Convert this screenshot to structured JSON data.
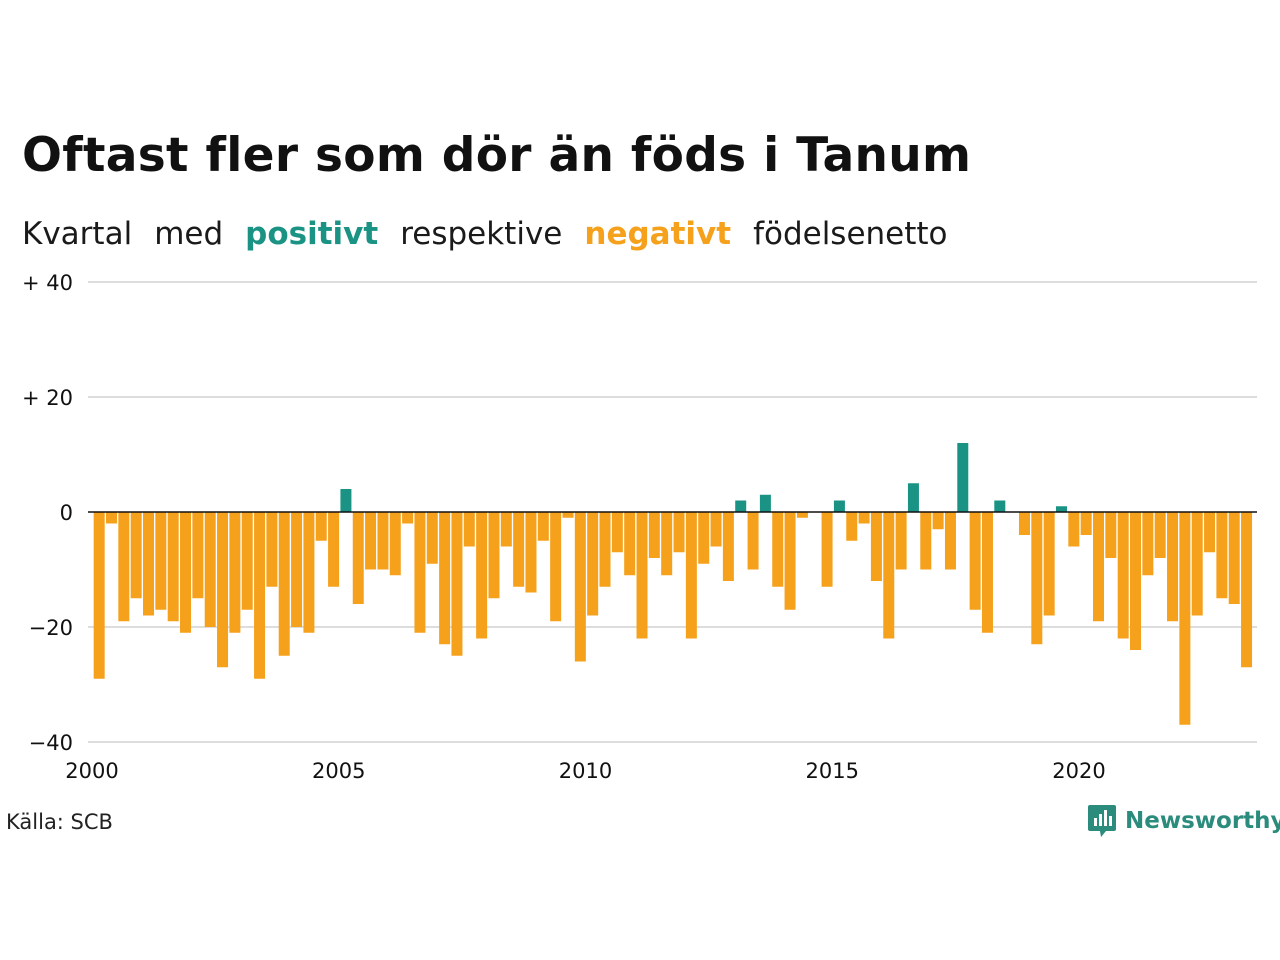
{
  "title": "Oftast fler som dör än föds i Tanum",
  "subtitle": {
    "w1": "Kvartal",
    "w2": "med",
    "positive": "positivt",
    "w3": "respektive",
    "negative": "negativt",
    "w4": "födelsenetto"
  },
  "source": "Källa: SCB",
  "brand": "Newsworthy",
  "colors": {
    "positive": "#1a9385",
    "negative": "#f5a11c",
    "grid": "#dddddd",
    "baseline": "#111111",
    "brand": "#2b8c7e"
  },
  "chart_data": {
    "type": "bar",
    "xlim": [
      2000,
      2023.75
    ],
    "ylim": [
      -40,
      40
    ],
    "yticks": [
      {
        "value": 40,
        "label": "+ 40"
      },
      {
        "value": 20,
        "label": "+ 20"
      },
      {
        "value": 0,
        "label": "0"
      },
      {
        "value": -20,
        "label": "−20"
      },
      {
        "value": -40,
        "label": "−40"
      }
    ],
    "xticks": [
      {
        "value": 2000,
        "label": "2000"
      },
      {
        "value": 2005,
        "label": "2005"
      },
      {
        "value": 2010,
        "label": "2010"
      },
      {
        "value": 2015,
        "label": "2015"
      },
      {
        "value": 2020,
        "label": "2020"
      }
    ],
    "x": [
      "2000 Q1",
      "2000 Q2",
      "2000 Q3",
      "2000 Q4",
      "2001 Q1",
      "2001 Q2",
      "2001 Q3",
      "2001 Q4",
      "2002 Q1",
      "2002 Q2",
      "2002 Q3",
      "2002 Q4",
      "2003 Q1",
      "2003 Q2",
      "2003 Q3",
      "2003 Q4",
      "2004 Q1",
      "2004 Q2",
      "2004 Q3",
      "2004 Q4",
      "2005 Q1",
      "2005 Q2",
      "2005 Q3",
      "2005 Q4",
      "2006 Q1",
      "2006 Q2",
      "2006 Q3",
      "2006 Q4",
      "2007 Q1",
      "2007 Q2",
      "2007 Q3",
      "2007 Q4",
      "2008 Q1",
      "2008 Q2",
      "2008 Q3",
      "2008 Q4",
      "2009 Q1",
      "2009 Q2",
      "2009 Q3",
      "2009 Q4",
      "2010 Q1",
      "2010 Q2",
      "2010 Q3",
      "2010 Q4",
      "2011 Q1",
      "2011 Q2",
      "2011 Q3",
      "2011 Q4",
      "2012 Q1",
      "2012 Q2",
      "2012 Q3",
      "2012 Q4",
      "2013 Q1",
      "2013 Q2",
      "2013 Q3",
      "2013 Q4",
      "2014 Q1",
      "2014 Q2",
      "2014 Q3",
      "2014 Q4",
      "2015 Q1",
      "2015 Q2",
      "2015 Q3",
      "2015 Q4",
      "2016 Q1",
      "2016 Q2",
      "2016 Q3",
      "2016 Q4",
      "2017 Q1",
      "2017 Q2",
      "2017 Q3",
      "2017 Q4",
      "2018 Q1",
      "2018 Q2",
      "2018 Q3",
      "2018 Q4",
      "2019 Q1",
      "2019 Q2",
      "2019 Q3",
      "2019 Q4",
      "2020 Q1",
      "2020 Q2",
      "2020 Q3",
      "2020 Q4",
      "2021 Q1",
      "2021 Q2",
      "2021 Q3",
      "2021 Q4",
      "2022 Q1",
      "2022 Q2",
      "2022 Q3",
      "2022 Q4",
      "2023 Q1",
      "2023 Q2",
      "2023 Q3"
    ],
    "values": [
      -29,
      -2,
      -19,
      -15,
      -18,
      -17,
      -19,
      -21,
      -15,
      -20,
      -27,
      -21,
      -17,
      -29,
      -13,
      -25,
      -20,
      -21,
      -5,
      -13,
      4,
      -16,
      -10,
      -10,
      -11,
      -2,
      -21,
      -9,
      -23,
      -25,
      -6,
      -22,
      -15,
      -6,
      -13,
      -14,
      -5,
      -19,
      -1,
      -26,
      -18,
      -13,
      -7,
      -11,
      -22,
      -8,
      -11,
      -7,
      -22,
      -9,
      -6,
      -12,
      2,
      -10,
      3,
      -13,
      -17,
      -1,
      0,
      -13,
      2,
      -5,
      -2,
      -12,
      -22,
      -10,
      5,
      -10,
      -3,
      -10,
      12,
      -17,
      -21,
      2,
      0,
      -4,
      -23,
      -18,
      1,
      -6,
      -4,
      -19,
      -8,
      -22,
      -24,
      -11,
      -8,
      -19,
      -37,
      -18,
      -7,
      -15,
      -16,
      -27,
      0
    ]
  }
}
